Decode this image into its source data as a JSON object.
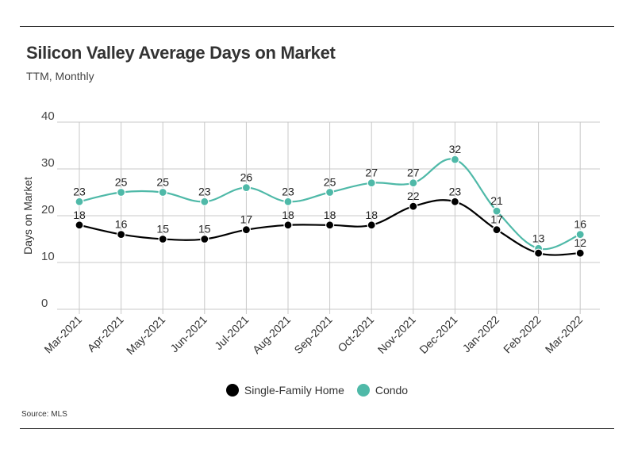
{
  "header": {
    "title": "Silicon Valley Average Days on Market",
    "subtitle": "TTM, Monthly"
  },
  "footer": {
    "source": "Source:  MLS"
  },
  "colors": {
    "single_family": "#000000",
    "condo": "#4fb9a8",
    "grid": "#c8c8c8"
  },
  "chart_data": {
    "type": "line",
    "title": "Silicon Valley Average Days on Market",
    "subtitle": "TTM, Monthly",
    "xlabel": "",
    "ylabel": "Days on Market",
    "ylim": [
      0,
      40
    ],
    "yticks": [
      0,
      10,
      20,
      30,
      40
    ],
    "grid": true,
    "legend_position": "bottom",
    "categories": [
      "Mar-2021",
      "Apr-2021",
      "May-2021",
      "Jun-2021",
      "Jul-2021",
      "Aug-2021",
      "Sep-2021",
      "Oct-2021",
      "Nov-2021",
      "Dec-2021",
      "Jan-2022",
      "Feb-2022",
      "Mar-2022"
    ],
    "series": [
      {
        "name": "Single-Family Home",
        "color": "#000000",
        "values": [
          18,
          16,
          15,
          15,
          17,
          18,
          18,
          18,
          22,
          23,
          17,
          12,
          12
        ],
        "labels": [
          "18",
          "16",
          "15",
          "15",
          "17",
          "18",
          "18",
          "18",
          "22",
          "23",
          "17",
          "",
          "12"
        ]
      },
      {
        "name": "Condo",
        "color": "#4fb9a8",
        "values": [
          23,
          25,
          25,
          23,
          26,
          23,
          25,
          27,
          27,
          32,
          21,
          13,
          16
        ],
        "labels": [
          "23",
          "25",
          "25",
          "23",
          "26",
          "23",
          "25",
          "27",
          "27",
          "32",
          "21",
          "13",
          "16"
        ]
      }
    ]
  }
}
